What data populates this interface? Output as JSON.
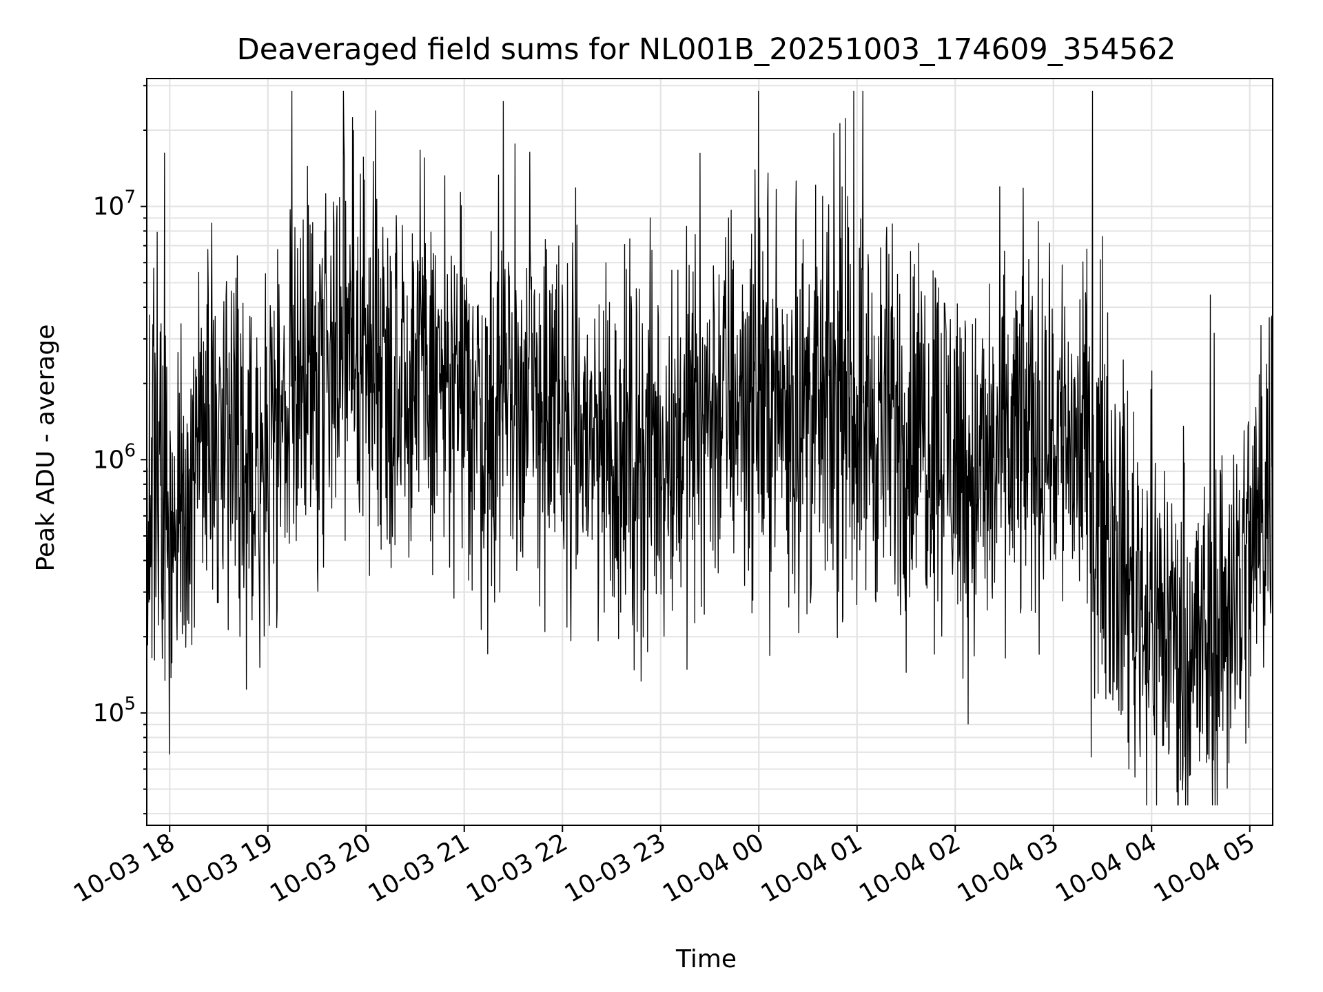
{
  "chart_data": {
    "type": "line",
    "title": "Deaveraged field sums for NL001B_20251003_174609_354562",
    "xlabel": "Time",
    "ylabel": "Peak ADU - average",
    "y_scale": "log",
    "ylim": [
      36000,
      32000000
    ],
    "xlim": [
      "2025-10-03 17:46",
      "2025-10-04 05:14"
    ],
    "grid": true,
    "line_color": "#000000",
    "x_tick_labels": [
      "10-03 18",
      "10-03 19",
      "10-03 20",
      "10-03 21",
      "10-03 22",
      "10-03 23",
      "10-04 00",
      "10-04 01",
      "10-04 02",
      "10-04 03",
      "10-04 04",
      "10-04 05"
    ],
    "y_tick_labels": [
      {
        "value": 100000,
        "base": "10",
        "exp": "5"
      },
      {
        "value": 1000000,
        "base": "10",
        "exp": "6"
      },
      {
        "value": 10000000,
        "base": "10",
        "exp": "7"
      }
    ],
    "series": [
      {
        "x": [
          "2025-10-03 17:46",
          "2025-10-03 18:00",
          "2025-10-03 18:15",
          "2025-10-03 18:30",
          "2025-10-03 18:45",
          "2025-10-03 19:00",
          "2025-10-03 19:15",
          "2025-10-03 19:30",
          "2025-10-03 19:45",
          "2025-10-03 20:00",
          "2025-10-03 20:15",
          "2025-10-03 20:30",
          "2025-10-03 20:45",
          "2025-10-03 21:00",
          "2025-10-03 21:15",
          "2025-10-03 21:30",
          "2025-10-03 21:45",
          "2025-10-03 22:00",
          "2025-10-03 22:15",
          "2025-10-03 22:30",
          "2025-10-03 22:45",
          "2025-10-03 23:00",
          "2025-10-03 23:15",
          "2025-10-03 23:30",
          "2025-10-03 23:45",
          "2025-10-04 00:00",
          "2025-10-04 00:15",
          "2025-10-04 00:30",
          "2025-10-04 00:45",
          "2025-10-04 01:00",
          "2025-10-04 01:15",
          "2025-10-04 01:30",
          "2025-10-04 01:45",
          "2025-10-04 02:00",
          "2025-10-04 02:15",
          "2025-10-04 02:30",
          "2025-10-04 02:45",
          "2025-10-04 03:00",
          "2025-10-04 03:15",
          "2025-10-04 03:30",
          "2025-10-04 03:45",
          "2025-10-04 04:00",
          "2025-10-04 04:15",
          "2025-10-04 04:30",
          "2025-10-04 04:45",
          "2025-10-04 05:00",
          "2025-10-04 05:14"
        ],
        "values": [
          950000,
          600000,
          1000000,
          1400000,
          1100000,
          1300000,
          1800000,
          2500000,
          3000000,
          2800000,
          2400000,
          2300000,
          2000000,
          1700000,
          1500000,
          1800000,
          1700000,
          1300000,
          1200000,
          1100000,
          1000000,
          1100000,
          1300000,
          1600000,
          1800000,
          1800000,
          1600000,
          1500000,
          1500000,
          1600000,
          1400000,
          1300000,
          1400000,
          1100000,
          800000,
          1100000,
          1300000,
          1300000,
          1200000,
          700000,
          350000,
          250000,
          200000,
          170000,
          250000,
          400000,
          1000000
        ]
      }
    ]
  }
}
